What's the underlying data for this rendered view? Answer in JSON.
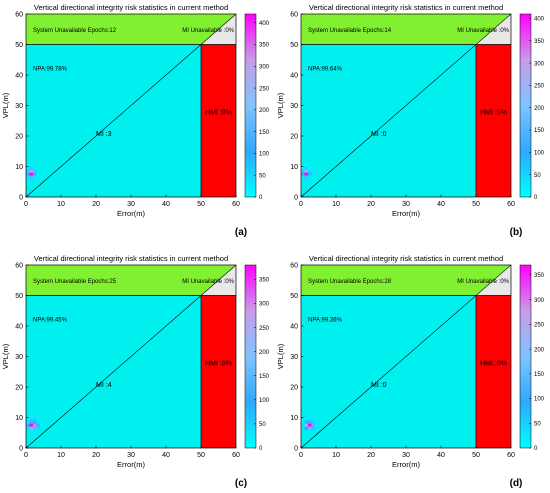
{
  "figure": {
    "panels": [
      {
        "label": "(a)",
        "chart_index": 0
      },
      {
        "label": "(b)",
        "chart_index": 1
      },
      {
        "label": "(c)",
        "chart_index": 2
      },
      {
        "label": "(d)",
        "chart_index": 3
      }
    ]
  },
  "colors": {
    "available_region": "#00f0f0",
    "unavailable_region": "#80f030",
    "hmi_region": "#ff0000",
    "mi_unavailable_region": "#e8e8e8",
    "diagonal": "#000000",
    "colormap": [
      "#00ffff",
      "#2fa8ff",
      "#7fc4ff",
      "#c89be8",
      "#ff00ff"
    ]
  },
  "chart_data": [
    {
      "type": "heatmap",
      "title": "Vertical directional integrity risk statistics in current method",
      "xlabel": "Error(m)",
      "ylabel": "VPL(m)",
      "xlim": [
        0,
        60
      ],
      "ylim": [
        0,
        60
      ],
      "xticks": [
        "0",
        "10",
        "20",
        "30",
        "40",
        "50",
        "60"
      ],
      "yticks": [
        "0",
        "10",
        "20",
        "30",
        "40",
        "50",
        "60"
      ],
      "alert_limit": 50,
      "region_labels": {
        "system_unavailable": "System Unavailable Epochs:12",
        "mi_unavailable": "MI Unavailable :0%",
        "npa": "NPA:99.78%",
        "mi": "MI :3",
        "hmi": "HMI :0%"
      },
      "colorbar": {
        "min": 0,
        "max": 420,
        "ticks": [
          "0",
          "50",
          "100",
          "150",
          "200",
          "250",
          "300",
          "350",
          "400"
        ],
        "tick_values": [
          0,
          50,
          100,
          150,
          200,
          250,
          300,
          350,
          400
        ]
      },
      "cells": [
        {
          "x": 1.0,
          "y": 7.0,
          "count": 420
        },
        {
          "x": 1.0,
          "y": 8.0,
          "count": 300
        },
        {
          "x": 1.0,
          "y": 6.0,
          "count": 150
        },
        {
          "x": 0.0,
          "y": 7.0,
          "count": 120
        },
        {
          "x": 2.0,
          "y": 7.0,
          "count": 90
        },
        {
          "x": 1.0,
          "y": 9.0,
          "count": 60
        },
        {
          "x": 0.0,
          "y": 8.0,
          "count": 55
        },
        {
          "x": 2.0,
          "y": 8.0,
          "count": 45
        },
        {
          "x": 1.0,
          "y": 5.0,
          "count": 40
        },
        {
          "x": 0.0,
          "y": 6.0,
          "count": 35
        },
        {
          "x": 2.0,
          "y": 6.0,
          "count": 30
        },
        {
          "x": 0.0,
          "y": 9.0,
          "count": 25
        },
        {
          "x": 2.0,
          "y": 9.0,
          "count": 20
        },
        {
          "x": 3.0,
          "y": 7.0,
          "count": 15
        },
        {
          "x": 0.0,
          "y": 10.0,
          "count": 12
        },
        {
          "x": 1.0,
          "y": 10.0,
          "count": 12
        }
      ]
    },
    {
      "type": "heatmap",
      "title": "Vertical directional integrity risk statistics in current method",
      "xlabel": "Error(m)",
      "ylabel": "VPL(m)",
      "xlim": [
        0,
        60
      ],
      "ylim": [
        0,
        60
      ],
      "xticks": [
        "0",
        "10",
        "20",
        "30",
        "40",
        "50",
        "60"
      ],
      "yticks": [
        "0",
        "10",
        "20",
        "30",
        "40",
        "50",
        "60"
      ],
      "alert_limit": 50,
      "region_labels": {
        "system_unavailable": "System Unavailable Epochs:14",
        "mi_unavailable": "MI Unavailable :0%",
        "npa": "NPA:99.64%",
        "mi": "MI :0",
        "hmi": "HMI :0%"
      },
      "colorbar": {
        "min": 0,
        "max": 410,
        "ticks": [
          "0",
          "50",
          "100",
          "150",
          "200",
          "250",
          "300",
          "350",
          "400"
        ],
        "tick_values": [
          0,
          50,
          100,
          150,
          200,
          250,
          300,
          350,
          400
        ]
      },
      "cells": [
        {
          "x": 1.0,
          "y": 7.0,
          "count": 410
        },
        {
          "x": 1.0,
          "y": 8.0,
          "count": 250
        },
        {
          "x": 1.0,
          "y": 6.0,
          "count": 150
        },
        {
          "x": 0.0,
          "y": 7.0,
          "count": 110
        },
        {
          "x": 2.0,
          "y": 7.0,
          "count": 80
        },
        {
          "x": 1.0,
          "y": 9.0,
          "count": 60
        },
        {
          "x": 0.0,
          "y": 8.0,
          "count": 50
        },
        {
          "x": 2.0,
          "y": 8.0,
          "count": 40
        },
        {
          "x": 1.0,
          "y": 5.0,
          "count": 35
        },
        {
          "x": 0.0,
          "y": 6.0,
          "count": 30
        },
        {
          "x": 2.0,
          "y": 6.0,
          "count": 25
        },
        {
          "x": 1.0,
          "y": 10.0,
          "count": 15
        },
        {
          "x": 0.0,
          "y": 9.0,
          "count": 15
        },
        {
          "x": 2.0,
          "y": 9.0,
          "count": 12
        }
      ]
    },
    {
      "type": "heatmap",
      "title": "Vertical directional integrity risk statistics in current method",
      "xlabel": "Error(m)",
      "ylabel": "VPL(m)",
      "xlim": [
        0,
        60
      ],
      "ylim": [
        0,
        60
      ],
      "xticks": [
        "0",
        "10",
        "20",
        "30",
        "40",
        "50",
        "60"
      ],
      "yticks": [
        "0",
        "10",
        "20",
        "30",
        "40",
        "50",
        "60"
      ],
      "alert_limit": 50,
      "region_labels": {
        "system_unavailable": "System Unavailable Epochs:25",
        "mi_unavailable": "MI Unavailable :0%",
        "npa": "NPA:99.45%",
        "mi": "MI :4",
        "hmi": "HMI :0%"
      },
      "colorbar": {
        "min": 0,
        "max": 380,
        "ticks": [
          "0",
          "50",
          "100",
          "150",
          "200",
          "250",
          "300",
          "350"
        ],
        "tick_values": [
          0,
          50,
          100,
          150,
          200,
          250,
          300,
          350
        ]
      },
      "cells": [
        {
          "x": 1.0,
          "y": 7.0,
          "count": 380
        },
        {
          "x": 2.0,
          "y": 7.0,
          "count": 300
        },
        {
          "x": 1.0,
          "y": 6.0,
          "count": 180
        },
        {
          "x": 2.0,
          "y": 6.0,
          "count": 150
        },
        {
          "x": 1.0,
          "y": 8.0,
          "count": 120
        },
        {
          "x": 2.0,
          "y": 8.0,
          "count": 100
        },
        {
          "x": 0.0,
          "y": 7.0,
          "count": 90
        },
        {
          "x": 3.0,
          "y": 7.0,
          "count": 80
        },
        {
          "x": 0.0,
          "y": 6.0,
          "count": 50
        },
        {
          "x": 3.0,
          "y": 6.0,
          "count": 45
        },
        {
          "x": 1.0,
          "y": 9.0,
          "count": 40
        },
        {
          "x": 2.0,
          "y": 9.0,
          "count": 35
        },
        {
          "x": 1.0,
          "y": 5.0,
          "count": 30
        },
        {
          "x": 2.0,
          "y": 5.0,
          "count": 25
        },
        {
          "x": 0.0,
          "y": 8.0,
          "count": 30
        },
        {
          "x": 3.0,
          "y": 8.0,
          "count": 25
        },
        {
          "x": 1.0,
          "y": 10.0,
          "count": 15
        },
        {
          "x": 4.0,
          "y": 7.0,
          "count": 15
        }
      ]
    },
    {
      "type": "heatmap",
      "title": "Vertical directional integrity risk statistics in current method",
      "xlabel": "Error(m)",
      "ylabel": "VPL(m)",
      "xlim": [
        0,
        60
      ],
      "ylim": [
        0,
        60
      ],
      "xticks": [
        "0",
        "10",
        "20",
        "30",
        "40",
        "50",
        "60"
      ],
      "yticks": [
        "0",
        "10",
        "20",
        "30",
        "40",
        "50",
        "60"
      ],
      "alert_limit": 50,
      "region_labels": {
        "system_unavailable": "System Unavailable Epochs:28",
        "mi_unavailable": "MI Unavailable :0%",
        "npa": "NPA:99.36%",
        "mi": "MI :0",
        "hmi": "HMI :0%"
      },
      "colorbar": {
        "min": 0,
        "max": 370,
        "ticks": [
          "0",
          "50",
          "100",
          "150",
          "200",
          "250",
          "300",
          "350"
        ],
        "tick_values": [
          0,
          50,
          100,
          150,
          200,
          250,
          300,
          350
        ]
      },
      "cells": [
        {
          "x": 2.0,
          "y": 7.0,
          "count": 370
        },
        {
          "x": 1.0,
          "y": 7.0,
          "count": 220
        },
        {
          "x": 2.0,
          "y": 6.0,
          "count": 160
        },
        {
          "x": 3.0,
          "y": 7.0,
          "count": 140
        },
        {
          "x": 2.0,
          "y": 8.0,
          "count": 110
        },
        {
          "x": 1.0,
          "y": 6.0,
          "count": 90
        },
        {
          "x": 1.0,
          "y": 8.0,
          "count": 80
        },
        {
          "x": 3.0,
          "y": 6.0,
          "count": 60
        },
        {
          "x": 3.0,
          "y": 8.0,
          "count": 50
        },
        {
          "x": 0.0,
          "y": 7.0,
          "count": 40
        },
        {
          "x": 2.0,
          "y": 9.0,
          "count": 35
        },
        {
          "x": 2.0,
          "y": 5.0,
          "count": 30
        },
        {
          "x": 4.0,
          "y": 7.0,
          "count": 20
        },
        {
          "x": 1.0,
          "y": 9.0,
          "count": 20
        },
        {
          "x": 0.0,
          "y": 8.0,
          "count": 15
        }
      ]
    }
  ]
}
